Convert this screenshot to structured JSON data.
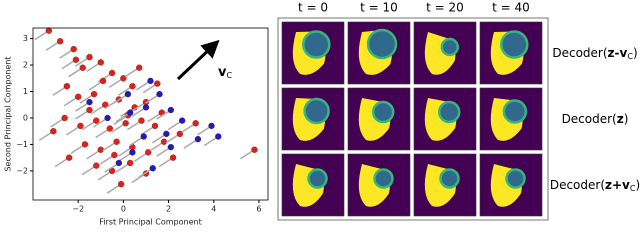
{
  "chart_data": {
    "type": "scatter",
    "xlabel": "First Principal Component",
    "ylabel": "Second Principal Component",
    "xlim": [
      -4.0,
      6.4
    ],
    "ylim": [
      -3.1,
      3.4
    ],
    "xticks": [
      {
        "value": -2,
        "label": "−2"
      },
      0,
      2,
      4,
      6
    ],
    "yticks": [
      {
        "value": -2,
        "label": "−2"
      },
      {
        "value": -1,
        "label": "−1"
      },
      0,
      1,
      2,
      3
    ],
    "annotation": {
      "text": "v",
      "sub": "C"
    },
    "series": [
      {
        "color": "#e0201b",
        "x": [
          -3.3,
          -2.8,
          -2.2,
          -1.8,
          -1.5,
          -1,
          -0.5,
          0,
          0.4,
          -2.5,
          -2,
          -1.3,
          -0.8,
          -0.2,
          0.5,
          1,
          -2.6,
          -1.9,
          -1.2,
          -0.6,
          0.1,
          0.8,
          1.4,
          -1.7,
          -1,
          -0.3,
          0.4,
          1.1,
          1.8,
          -1.2,
          -0.5,
          0.3,
          1,
          -0.1,
          2.5,
          3.2,
          5.8,
          -3.1,
          -2.4,
          0.7,
          1.5,
          -1.5,
          -0.9,
          0.2,
          1.7,
          -2.1,
          2.2,
          -0.4
        ],
        "y": [
          3.3,
          2.9,
          2.6,
          1.9,
          2.3,
          2.1,
          1.7,
          1.5,
          1.2,
          1.2,
          0.8,
          0.9,
          0.5,
          0.7,
          0.4,
          0.6,
          0,
          -0.3,
          -0.1,
          -0.4,
          -0.2,
          -0.1,
          -0.3,
          -1,
          -1.2,
          -0.9,
          -1.1,
          -1.3,
          -0.9,
          -1.8,
          -2,
          -1.7,
          -2.1,
          -2.5,
          -0.6,
          -0.2,
          -1.2,
          -0.5,
          -1.5,
          1.9,
          1.3,
          0.3,
          1.4,
          0.1,
          0.2,
          2.2,
          -1.5,
          -1.4
        ]
      },
      {
        "color": "#1c1cc4",
        "x": [
          0.3,
          1,
          1.6,
          2.1,
          2.6,
          4.2,
          3.3,
          1.9,
          0.9,
          0.4,
          1.3,
          -0.2,
          -1.5,
          -0.7,
          1.2,
          0.2,
          2.1,
          3.9
        ],
        "y": [
          0.2,
          0.4,
          0.9,
          0.3,
          -0.1,
          -0.7,
          -0.8,
          -0.6,
          -0.7,
          -1.3,
          -1.9,
          -1.7,
          0.6,
          0,
          1.4,
          0.9,
          -1.1,
          -0.3
        ]
      }
    ]
  },
  "panel": {
    "columns": [
      "t = 0",
      "t = 10",
      "t = 20",
      "t = 40"
    ],
    "rows": [
      {
        "text": "Decoder(",
        "bold": "z-v",
        "sub": "C",
        "end": ")"
      },
      {
        "text": "Decoder(",
        "bold": "z",
        "end": ")"
      },
      {
        "text": "Decoder(",
        "bold": "z+v",
        "sub": "C",
        "end": ")"
      }
    ]
  }
}
